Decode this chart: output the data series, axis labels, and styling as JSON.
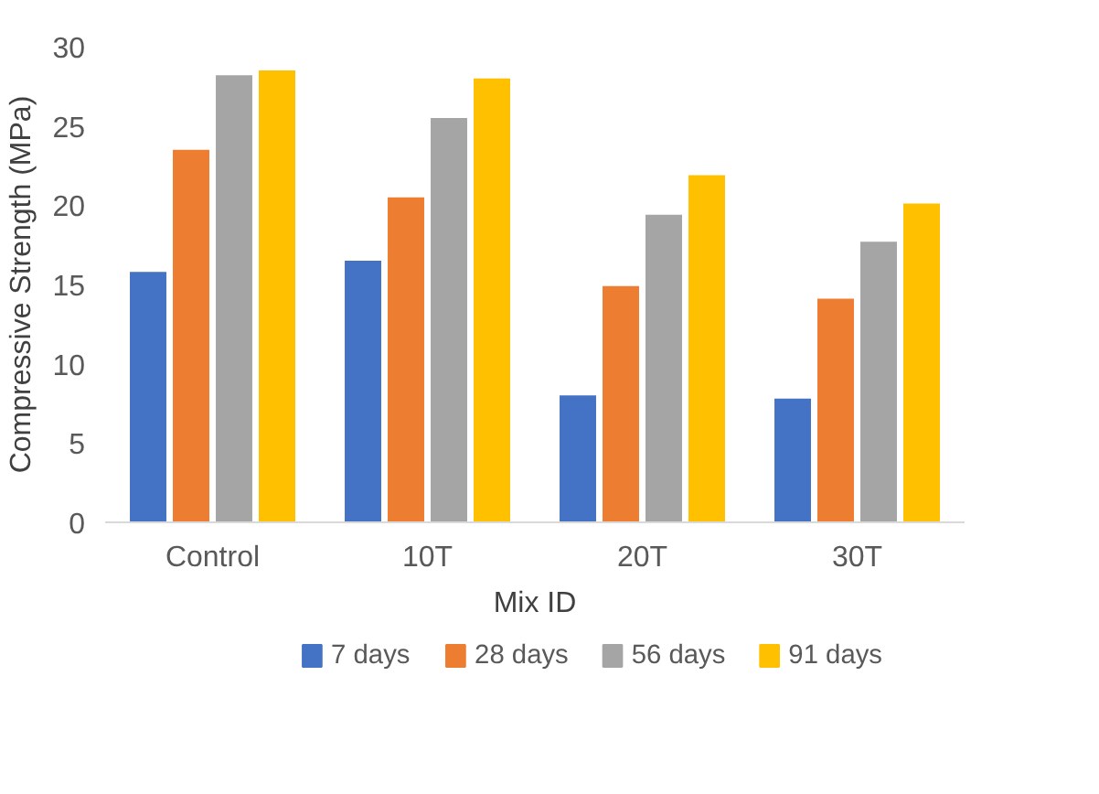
{
  "chart_data": {
    "type": "bar",
    "xlabel": "Mix ID",
    "ylabel": "Compressive Strength (MPa)",
    "categories": [
      "Control",
      "10T",
      "20T",
      "30T"
    ],
    "series": [
      {
        "name": "7 days",
        "color": "#4472c4",
        "values": [
          15.8,
          16.5,
          8.0,
          7.8
        ]
      },
      {
        "name": "28 days",
        "color": "#ed7d31",
        "values": [
          23.5,
          20.5,
          14.9,
          14.1
        ]
      },
      {
        "name": "56 days",
        "color": "#a5a5a5",
        "values": [
          28.2,
          25.5,
          19.4,
          17.7
        ]
      },
      {
        "name": "91 days",
        "color": "#ffc000",
        "values": [
          28.5,
          28.0,
          21.9,
          20.1
        ]
      }
    ],
    "ylim": [
      0,
      30
    ],
    "yticks": [
      0,
      5,
      10,
      15,
      20,
      25,
      30
    ],
    "grid": false,
    "legend": "bottom"
  }
}
